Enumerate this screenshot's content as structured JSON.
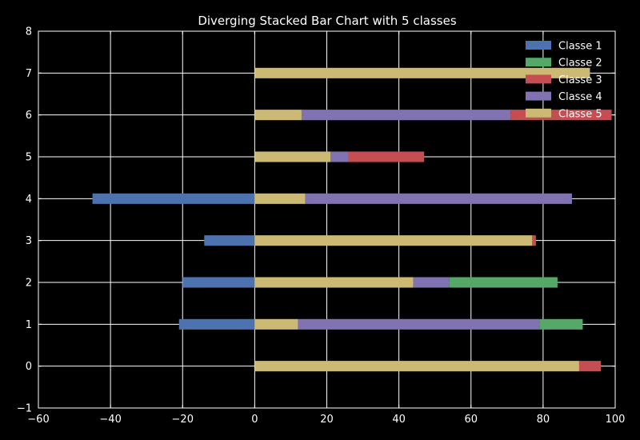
{
  "chart_data": {
    "type": "bar",
    "orientation": "horizontal",
    "stacked": true,
    "diverging": true,
    "title": "Diverging Stacked Bar Chart with 5 classes",
    "xlabel": "",
    "ylabel": "",
    "xlim": [
      -60,
      100
    ],
    "ylim": [
      -1,
      8
    ],
    "xticks": [
      -60,
      -40,
      -20,
      0,
      20,
      40,
      60,
      80,
      100
    ],
    "yticks": [
      -1,
      0,
      1,
      2,
      3,
      4,
      5,
      6,
      7,
      8
    ],
    "grid": true,
    "legend_position": "top-right",
    "background": "#000000",
    "categories": [
      0,
      1,
      2,
      3,
      4,
      5,
      6,
      7
    ],
    "series": [
      {
        "name": "Classe 1",
        "color": "#4c72b0",
        "values": [
          0,
          -21,
          -20,
          -14,
          -45,
          0,
          0,
          0
        ]
      },
      {
        "name": "Classe 2",
        "color": "#55a868",
        "values": [
          0,
          12,
          30,
          0,
          0,
          0,
          0,
          0
        ]
      },
      {
        "name": "Classe 3",
        "color": "#c44e52",
        "values": [
          6,
          0,
          0,
          1,
          0,
          21,
          28,
          0
        ]
      },
      {
        "name": "Classe 4",
        "color": "#8172b2",
        "values": [
          0,
          67,
          10,
          0,
          74,
          5,
          58,
          0
        ]
      },
      {
        "name": "Classe 5",
        "color": "#ccb974",
        "values": [
          90,
          12,
          44,
          77,
          14,
          21,
          13,
          93
        ]
      }
    ],
    "positive_stack_order": [
      "Classe 5",
      "Classe 4",
      "Classe 2",
      "Classe 3"
    ]
  }
}
